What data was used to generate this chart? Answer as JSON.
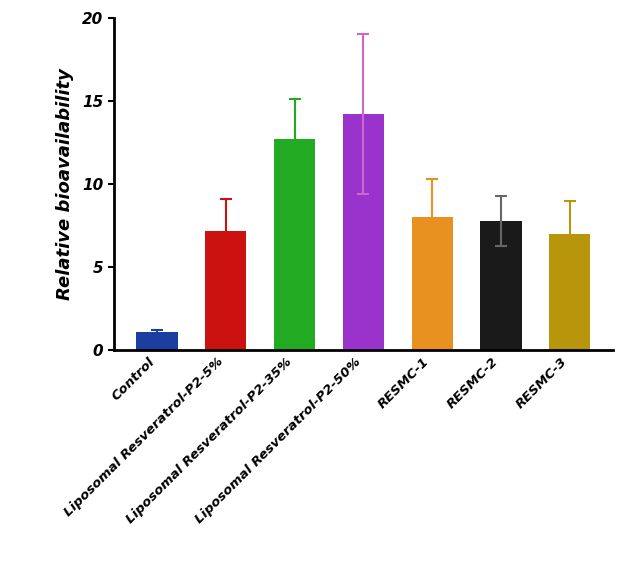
{
  "categories": [
    "Control",
    "Liposomal Resveratrol-P2-5%",
    "Liposomal Resveratrol-P2-35%",
    "Liposomal Resveratrol-P2-50%",
    "RESMC-1",
    "RESMC-2",
    "RESMC-3"
  ],
  "values": [
    1.1,
    7.2,
    12.7,
    14.2,
    8.0,
    7.8,
    7.0
  ],
  "errors": [
    0.15,
    1.9,
    2.4,
    4.8,
    2.3,
    1.5,
    2.0
  ],
  "bar_colors": [
    "#1a3fa0",
    "#cc1111",
    "#22aa22",
    "#9933cc",
    "#e89020",
    "#1a1a1a",
    "#b8960c"
  ],
  "error_colors": [
    "#1a3fa0",
    "#cc1111",
    "#22aa22",
    "#cc66cc",
    "#e89020",
    "#666666",
    "#b8960c"
  ],
  "ylabel": "Relative bioavailability",
  "ylim": [
    0,
    20
  ],
  "yticks": [
    0,
    5,
    10,
    15,
    20
  ],
  "bar_width": 0.6,
  "figsize": [
    6.32,
    5.84
  ],
  "dpi": 100,
  "background_color": "#ffffff"
}
